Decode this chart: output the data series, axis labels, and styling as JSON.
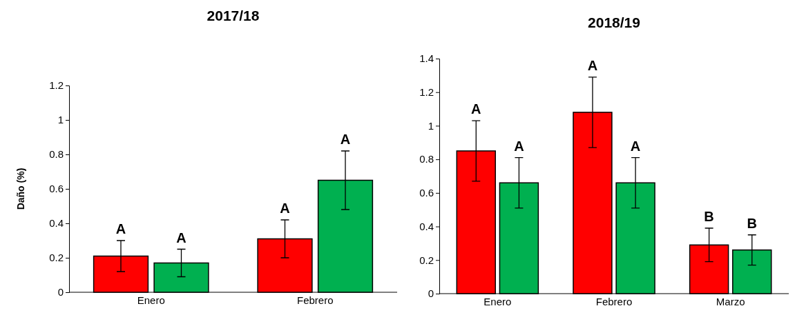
{
  "chart_data": [
    {
      "type": "bar",
      "title": "2017/18",
      "ylabel": "Daño (%)",
      "categories": [
        "Enero",
        "Febrero"
      ],
      "ylim": [
        0,
        1.2
      ],
      "yticks": [
        0,
        0.2,
        0.4,
        0.6,
        0.8,
        1,
        1.2
      ],
      "series": [
        {
          "color": "#ff0000",
          "values": [
            0.21,
            0.31
          ],
          "errors": [
            [
              0.12,
              0.3
            ],
            [
              0.2,
              0.42
            ]
          ],
          "value_labels": [
            "A",
            "A"
          ]
        },
        {
          "color": "#00b050",
          "values": [
            0.17,
            0.65
          ],
          "errors": [
            [
              0.09,
              0.25
            ],
            [
              0.48,
              0.82
            ]
          ],
          "value_labels": [
            "A",
            "A"
          ]
        }
      ]
    },
    {
      "type": "bar",
      "title": "2018/19",
      "categories": [
        "Enero",
        "Febrero",
        "Marzo"
      ],
      "ylim": [
        0,
        1.4
      ],
      "yticks": [
        0,
        0.2,
        0.4,
        0.6,
        0.8,
        1,
        1.2,
        1.4
      ],
      "series": [
        {
          "color": "#ff0000",
          "values": [
            0.85,
            1.08,
            0.29
          ],
          "errors": [
            [
              0.67,
              1.03
            ],
            [
              0.87,
              1.29
            ],
            [
              0.19,
              0.39
            ]
          ],
          "value_labels": [
            "A",
            "A",
            "B"
          ]
        },
        {
          "color": "#00b050",
          "values": [
            0.66,
            0.66,
            0.26
          ],
          "errors": [
            [
              0.51,
              0.81
            ],
            [
              0.51,
              0.81
            ],
            [
              0.17,
              0.35
            ]
          ],
          "value_labels": [
            "A",
            "A",
            "B"
          ]
        }
      ]
    }
  ]
}
